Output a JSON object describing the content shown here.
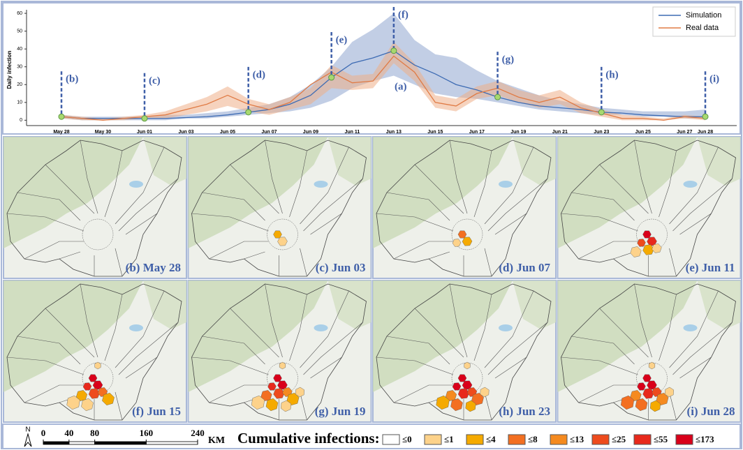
{
  "chart_data": {
    "type": "line",
    "y_label": "Daily infection",
    "categories": [
      "May 28",
      null,
      "May 30",
      null,
      "Jun 01",
      null,
      "Jun 03",
      null,
      "Jun 05",
      null,
      "Jun 07",
      null,
      "Jun 09",
      null,
      "Jun 11",
      null,
      "Jun 13",
      null,
      "Jun 15",
      null,
      "Jun 17",
      null,
      "Jun 19",
      null,
      "Jun 21",
      null,
      "Jun 23",
      null,
      "Jun 25",
      null,
      "Jun 27",
      "Jun 28"
    ],
    "series": [
      {
        "name": "Simulation",
        "color": "#3d6bb3",
        "band_color": "#8fa6d0",
        "values": [
          2,
          1,
          1,
          1,
          1,
          1,
          1.5,
          2,
          3,
          4.5,
          6,
          9,
          14,
          24,
          32,
          35,
          39,
          31,
          26,
          20,
          17,
          13,
          10,
          8,
          7,
          6,
          4.5,
          4,
          3,
          2.5,
          2,
          2
        ],
        "lower": [
          1,
          0,
          0,
          0,
          0,
          0,
          1,
          1,
          2,
          3,
          4,
          5,
          7,
          11,
          18,
          22,
          25,
          20,
          15,
          13,
          12,
          10,
          8,
          6,
          5,
          4,
          3,
          3,
          2,
          2,
          1,
          1
        ],
        "upper": [
          3,
          2,
          2,
          2,
          2,
          3,
          3,
          4,
          5,
          7,
          9,
          13,
          20,
          30,
          44,
          51,
          60,
          45,
          37,
          35,
          28,
          22,
          18,
          14,
          11,
          9,
          7,
          6,
          5,
          5,
          5,
          6
        ]
      },
      {
        "name": "Real data",
        "color": "#e07b45",
        "band_color": "#efae88",
        "values": [
          2,
          1,
          0,
          1,
          2,
          3,
          6,
          9,
          14,
          9,
          6,
          10,
          20,
          27,
          21,
          22,
          36,
          27,
          10,
          8,
          15,
          18,
          13,
          10,
          13,
          7,
          4,
          1,
          1,
          0,
          2,
          1
        ],
        "lower": [
          1,
          0,
          0,
          0,
          1,
          1,
          3,
          5,
          8,
          5,
          3,
          6,
          9,
          18,
          17,
          18,
          32,
          22,
          7,
          5,
          12,
          14,
          10,
          7,
          9,
          4,
          2,
          0,
          0,
          0,
          1,
          0
        ],
        "upper": [
          3,
          2,
          1,
          2,
          3,
          5,
          9,
          13,
          19,
          12,
          9,
          13,
          18,
          31,
          25,
          26,
          44,
          32,
          14,
          12,
          19,
          22,
          17,
          14,
          17,
          10,
          6,
          3,
          2,
          1,
          3,
          2
        ]
      }
    ],
    "markers": [
      "(b)",
      null,
      null,
      null,
      "(c)",
      null,
      null,
      null,
      null,
      "(d)",
      null,
      null,
      null,
      "(e)",
      null,
      null,
      "(f)",
      null,
      null,
      null,
      null,
      "(g)",
      null,
      null,
      null,
      null,
      "(h)",
      null,
      null,
      null,
      null,
      "(i)"
    ],
    "annotation": "(a)",
    "ylim": [
      -3,
      62
    ],
    "yticks": [
      0,
      10,
      20,
      30,
      40,
      50,
      60
    ],
    "legend": "upper-right"
  },
  "maps": {
    "panels": [
      "(b) May 28",
      "(c) Jun 03",
      "(d) Jun 07",
      "(e) Jun 11",
      "(f) Jun 15",
      "(g) Jun 19",
      "(h) Jun 23",
      "(i) Jun 28"
    ]
  },
  "north": "N",
  "scale_bar": {
    "ticks": [
      0,
      40,
      80,
      160,
      240
    ],
    "unit": "KM"
  },
  "infection_legend": {
    "title": "Cumulative infections:",
    "items": [
      {
        "label": "≤0",
        "color": "#ffffff"
      },
      {
        "label": "≤1",
        "color": "#fdd28a"
      },
      {
        "label": "≤4",
        "color": "#f5aa00"
      },
      {
        "label": "≤8",
        "color": "#f36f21"
      },
      {
        "label": "≤13",
        "color": "#f58a1f"
      },
      {
        "label": "≤25",
        "color": "#ee4b1d"
      },
      {
        "label": "≤55",
        "color": "#e8291c"
      },
      {
        "label": "≤173",
        "color": "#d9001a"
      }
    ]
  }
}
